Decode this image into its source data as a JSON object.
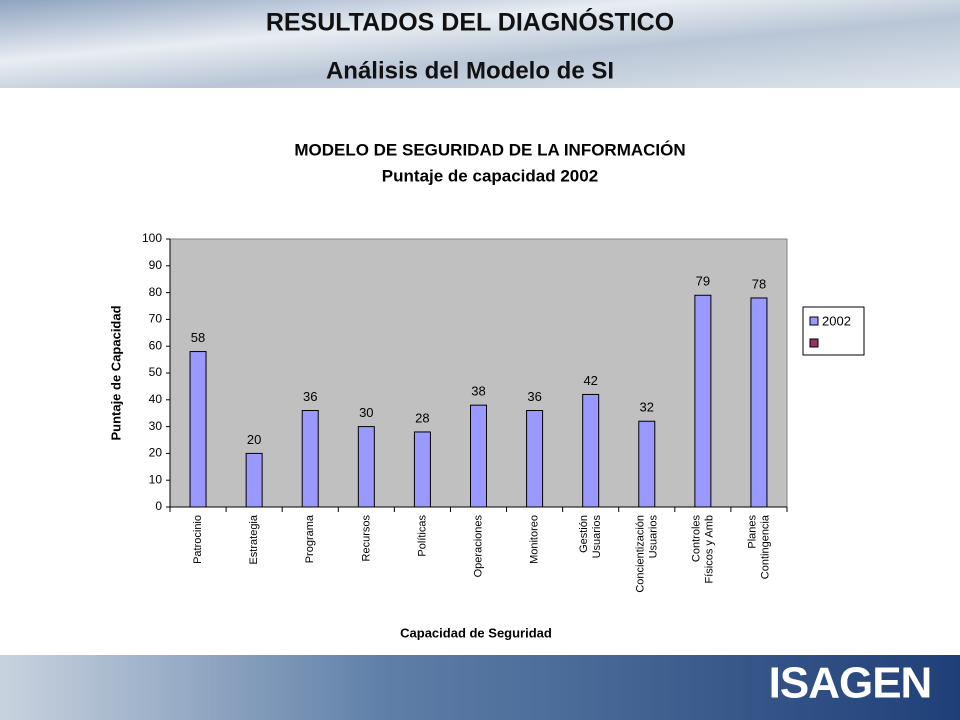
{
  "header": {
    "title": "RESULTADOS DEL DIAGNÓSTICO",
    "subtitle": "Análisis del Modelo de SI",
    "logo": "ISAGEN"
  },
  "chart_data": {
    "type": "bar",
    "title": "MODELO DE SEGURIDAD DE LA INFORMACIÓN",
    "subtitle": "Puntaje de capacidad  2002",
    "x_label": "Capacidad de Seguridad",
    "y_label": "Puntaje de Capacidad",
    "categories": [
      "Patrocinio",
      "Estrategia",
      "Programa",
      "Recursos",
      "Políticas",
      "Operaciones",
      "Monitoreo",
      "Gestión\nUsuarios",
      "Concientización\nUsuarios",
      "Controles\nFísicos y Amb",
      "Planes\nContingencia"
    ],
    "series": [
      {
        "name": "2002",
        "color": "#9999ff",
        "values": [
          58,
          20,
          36,
          30,
          28,
          38,
          36,
          42,
          32,
          79,
          78
        ]
      }
    ],
    "ylim": [
      0,
      100
    ],
    "yticks": [
      0,
      10,
      20,
      30,
      40,
      50,
      60,
      70,
      80,
      90,
      100
    ],
    "grid": false,
    "legend": "right",
    "plot_background": "#c0c0c0"
  }
}
